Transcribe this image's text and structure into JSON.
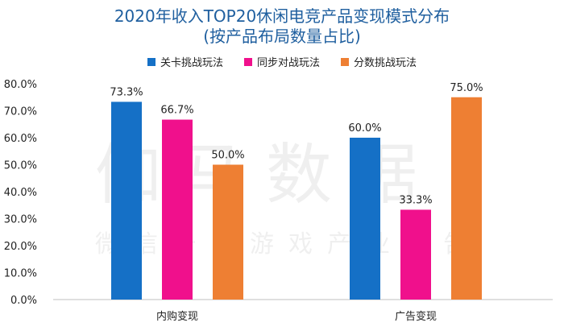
{
  "title_line1": "2020年收入TOP20休闲电竞产品变现模式分布",
  "title_line2": "(按产品布局数量占比)",
  "watermark_main": "伽马数据",
  "watermark_sub": "微信号：游戏产业报告",
  "colors": {
    "series": [
      "#1570c6",
      "#f0108c",
      "#ee7f33"
    ],
    "title": "#1f5f9f",
    "axis": "#bfbfbf"
  },
  "chart_data": {
    "type": "bar",
    "categories": [
      "内购变现",
      "广告变现"
    ],
    "series": [
      {
        "name": "关卡挑战玩法",
        "values": [
          73.3,
          60.0
        ],
        "labels": [
          "73.3%",
          "60.0%"
        ]
      },
      {
        "name": "同步对战玩法",
        "values": [
          66.7,
          33.3
        ],
        "labels": [
          "66.7%",
          "33.3%"
        ]
      },
      {
        "name": "分数挑战玩法",
        "values": [
          50.0,
          75.0
        ],
        "labels": [
          "50.0%",
          "75.0%"
        ]
      }
    ],
    "yticks": [
      "0.0%",
      "10.0%",
      "20.0%",
      "30.0%",
      "40.0%",
      "50.0%",
      "60.0%",
      "70.0%",
      "80.0%"
    ],
    "ylim": [
      0,
      80
    ],
    "legend": "top"
  }
}
